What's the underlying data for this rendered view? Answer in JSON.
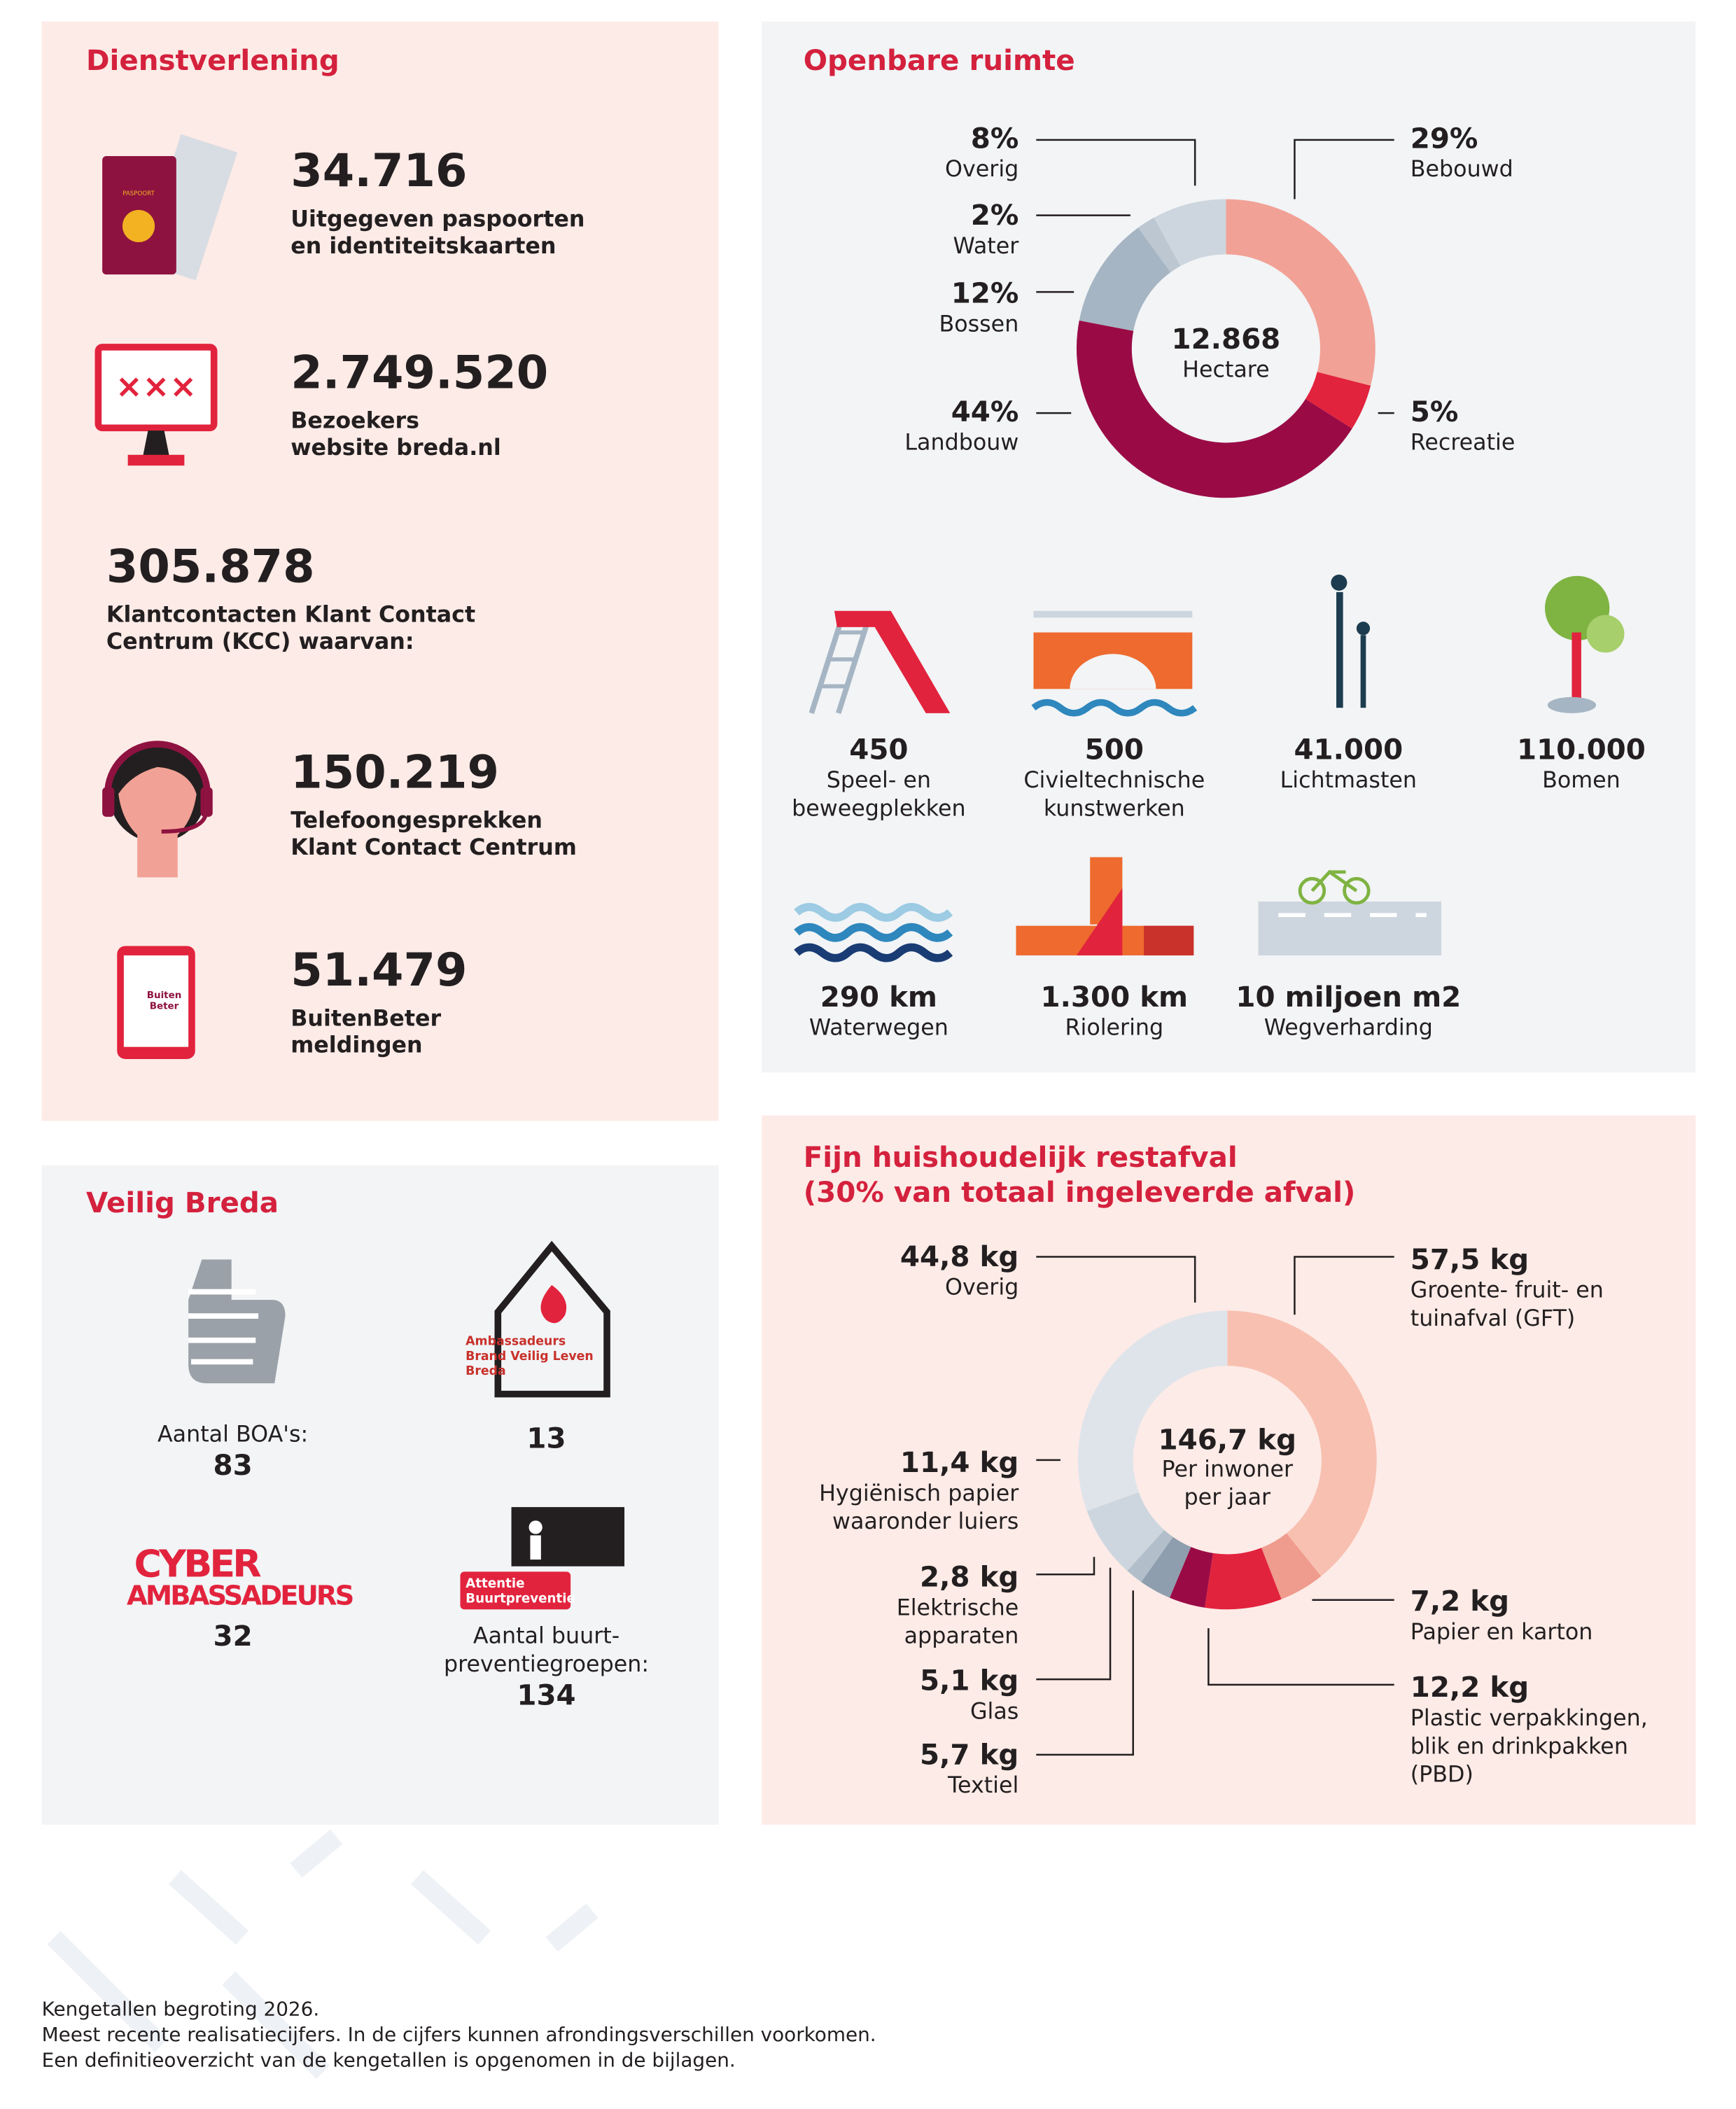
{
  "dienstverlening": {
    "title": "Dienstverlening",
    "passport_text": "PASPOORT",
    "app_logo": [
      "Buiten",
      "Beter"
    ],
    "items": [
      {
        "value": "34.716",
        "lines": [
          "Uitgegeven paspoorten",
          "en identiteitskaarten"
        ]
      },
      {
        "value": "2.749.520",
        "lines": [
          "Bezoekers",
          "website breda.nl"
        ]
      },
      {
        "value": "305.878",
        "lines": [
          "Klantcontacten Klant Contact",
          "Centrum (KCC) waarvan:"
        ]
      },
      {
        "value": "150.219",
        "lines": [
          "Telefoongesprekken",
          "Klant Contact Centrum"
        ]
      },
      {
        "value": "51.479",
        "lines": [
          "BuitenBeter",
          "meldingen"
        ]
      }
    ]
  },
  "openbare_ruimte": {
    "title": "Openbare ruimte",
    "items": [
      {
        "value": "450",
        "lines": [
          "Speel- en",
          "beweegplekken"
        ]
      },
      {
        "value": "500",
        "lines": [
          "Civieltechnische",
          "kunstwerken"
        ]
      },
      {
        "value": "41.000",
        "lines": [
          "Lichtmasten"
        ]
      },
      {
        "value": "110.000",
        "lines": [
          "Bomen"
        ]
      },
      {
        "value": "290 km",
        "lines": [
          "Waterwegen"
        ]
      },
      {
        "value": "1.300 km",
        "lines": [
          "Riolering"
        ]
      },
      {
        "value": "10 miljoen m2",
        "lines": [
          "Wegverharding"
        ]
      }
    ]
  },
  "restafval": {
    "title_lines": [
      "Fijn huishoudelijk restafval",
      "(30% van totaal ingeleverde afval)"
    ]
  },
  "veilig_breda": {
    "title": "Veilig Breda",
    "boa": {
      "label": "Aantal BOA's:",
      "value": "83"
    },
    "brand": {
      "logo": [
        "Ambassadeurs",
        "Brand Veilig Leven",
        "Breda"
      ],
      "value": "13"
    },
    "cyber": {
      "logo": [
        "CYBER",
        "AMBASSADEURS"
      ],
      "value": "32"
    },
    "buurt": {
      "badge": [
        "Attentie",
        "Buurtpreventie"
      ],
      "lines": [
        "Aantal buurt-",
        "preventiegroepen:"
      ],
      "value": "134"
    }
  },
  "footer": [
    "Kengetallen begroting 2026.",
    "Meest recente realisatiecijfers. In de cijfers kunnen afrondingsverschillen voorkomen.",
    "Een definitieoverzicht van de kengetallen is opgenomen in de bijlagen."
  ],
  "chart_data": [
    {
      "type": "donut",
      "center_lines": [
        "12.868",
        "Hectare"
      ],
      "categories": [
        [
          "Bebouwd"
        ],
        [
          "Recreatie"
        ],
        [
          "Landbouw"
        ],
        [
          "Bossen"
        ],
        [
          "Water"
        ],
        [
          "Overig"
        ]
      ],
      "values": [
        29,
        5,
        44,
        12,
        2,
        8
      ],
      "value_labels": [
        "29%",
        "5%",
        "44%",
        "12%",
        "2%",
        "8%"
      ],
      "colors": [
        "#f2a196",
        "#e2233d",
        "#9a0b46",
        "#a6b5c3",
        "#bcc7d1",
        "#cdd6de"
      ]
    },
    {
      "type": "donut",
      "center_lines": [
        "146,7 kg",
        "Per inwoner",
        "per jaar"
      ],
      "categories": [
        [
          "Groente- fruit- en",
          "tuinafval (GFT)"
        ],
        [
          "Papier en karton"
        ],
        [
          "Plastic verpakkingen,",
          "blik en drinkpakken",
          "(PBD)"
        ],
        [
          "Textiel"
        ],
        [
          "Glas"
        ],
        [
          "Elektrische",
          "apparaten"
        ],
        [
          "Hygiënisch papier",
          "waaronder luiers"
        ],
        [
          "Overig"
        ]
      ],
      "values": [
        57.5,
        7.2,
        12.2,
        5.7,
        5.1,
        2.8,
        11.4,
        44.8
      ],
      "value_labels": [
        "57,5 kg",
        "7,2 kg",
        "12,2 kg",
        "5,7 kg",
        "5,1 kg",
        "2,8 kg",
        "11,4 kg",
        "44,8 kg"
      ],
      "colors": [
        "#f8c0b1",
        "#ef9b8d",
        "#e2233d",
        "#9a0b46",
        "#8e9eae",
        "#b2bfcb",
        "#cdd6de",
        "#dfe4ea"
      ]
    }
  ]
}
